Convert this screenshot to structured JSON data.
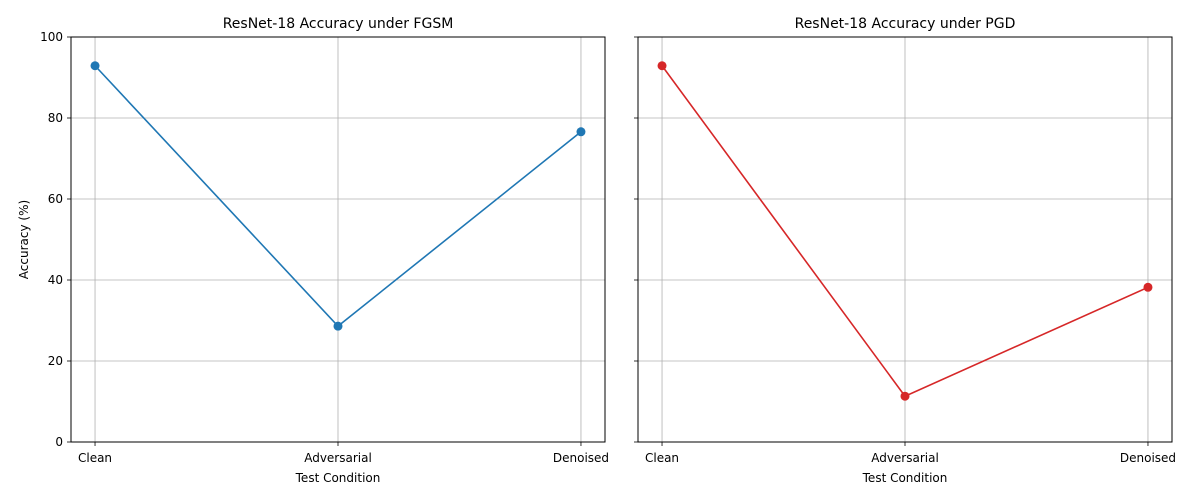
{
  "chart_data": [
    {
      "type": "line",
      "title": "ResNet-18 Accuracy under FGSM",
      "xlabel": "Test Condition",
      "ylabel": "Accuracy (%)",
      "categories": [
        "Clean",
        "Adversarial",
        "Denoised"
      ],
      "series": [
        {
          "values": [
            92.9,
            28.6,
            76.6
          ],
          "color": "#1f77b4"
        }
      ],
      "ylim": [
        0,
        100
      ],
      "yticks": [
        0,
        20,
        40,
        60,
        80,
        100
      ],
      "grid": true
    },
    {
      "type": "line",
      "title": "ResNet-18 Accuracy under PGD",
      "xlabel": "Test Condition",
      "ylabel": "",
      "categories": [
        "Clean",
        "Adversarial",
        "Denoised"
      ],
      "series": [
        {
          "values": [
            92.9,
            11.3,
            38.2
          ],
          "color": "#d62728"
        }
      ],
      "ylim": [
        0,
        100
      ],
      "yticks": [
        0,
        20,
        40,
        60,
        80,
        100
      ],
      "grid": true,
      "sharey": true
    }
  ]
}
